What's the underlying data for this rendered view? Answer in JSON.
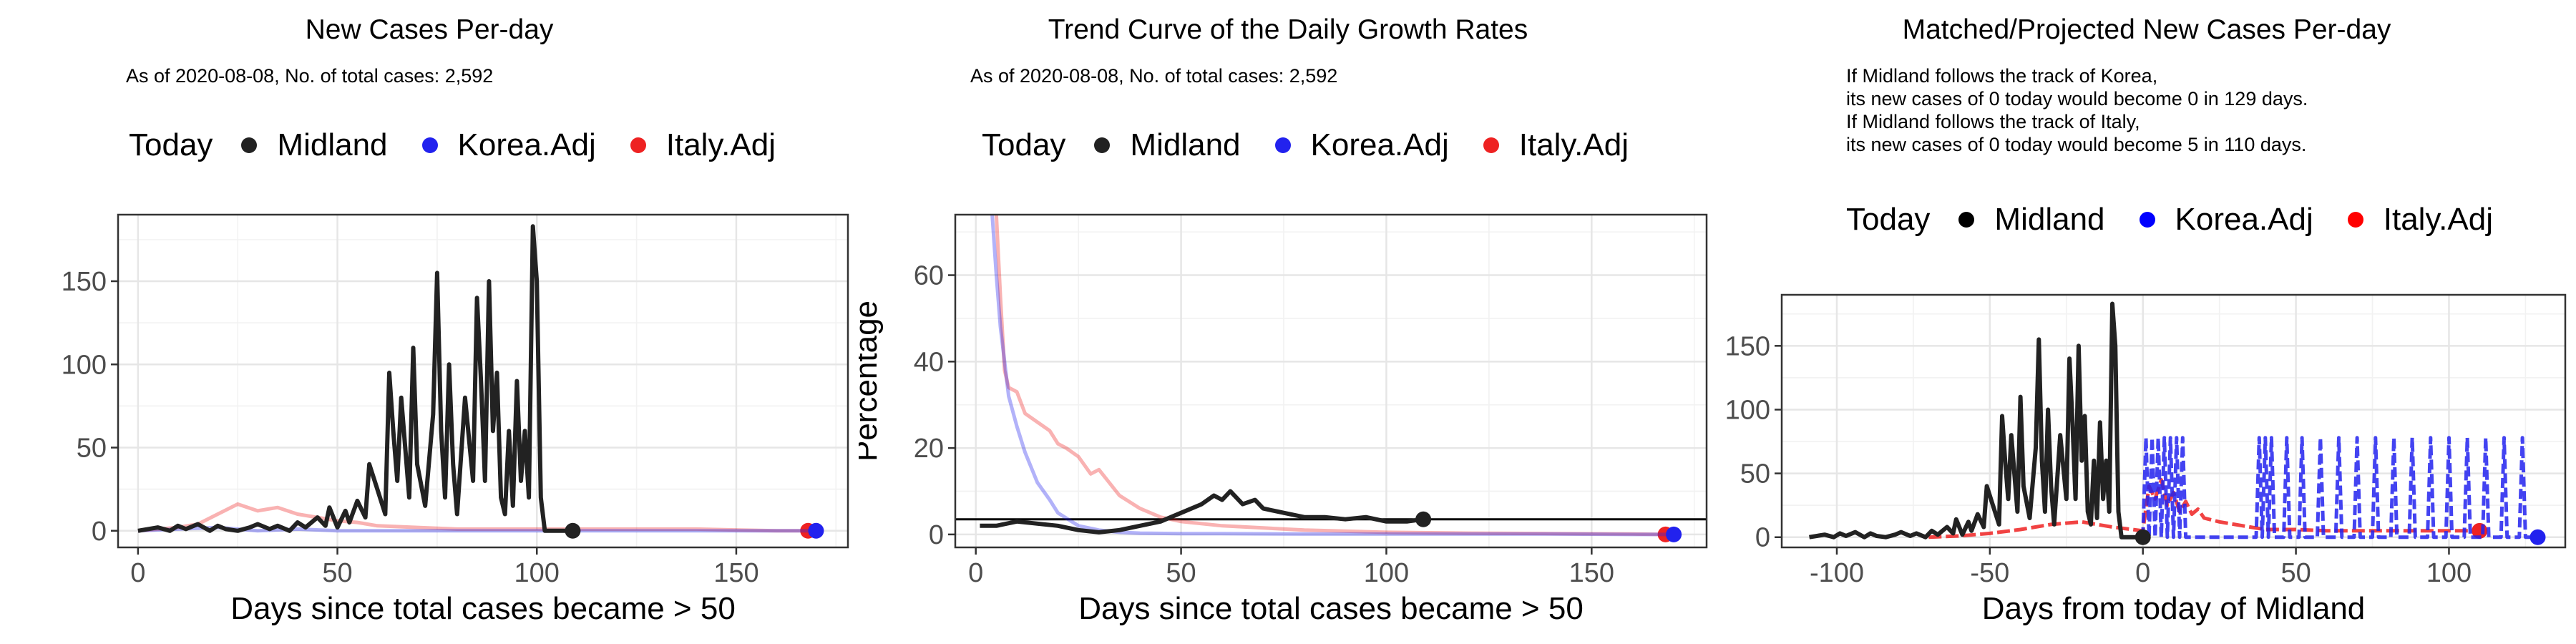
{
  "colors": {
    "midland": "#222222",
    "korea": "#2222ee",
    "italy": "#ee2222",
    "grid": "#ebebeb",
    "hline": "#000000"
  },
  "legend": {
    "title": "Today",
    "items": [
      "Midland",
      "Korea.Adj",
      "Italy.Adj"
    ]
  },
  "panel1": {
    "title": "New Cases Per-day",
    "subtitle": "As of 2020-08-08, No. of total cases: 2,592",
    "xlabel": "Days since total cases became > 50"
  },
  "panel2": {
    "title": "Trend Curve of the Daily Growth Rates",
    "subtitle": "As of 2020-08-08, No. of total cases: 2,592",
    "xlabel": "Days since total cases became > 50",
    "ylabel": "Percentage"
  },
  "panel3": {
    "title": "Matched/Projected New Cases Per-day",
    "note1": "If Midland follows the track of Korea,",
    "note2": "its new cases of 0 today would become 0 in 129 days.",
    "note3": "If Midland follows the track of Italy,",
    "note4": "its new cases of 0 today would become 5 in 110 days.",
    "xlabel": "Days from today of Midland"
  },
  "chart_data": [
    {
      "type": "line",
      "title": "New Cases Per-day",
      "xlabel": "Days since total cases became > 50",
      "ylabel": "",
      "xlim": [
        -5,
        178
      ],
      "ylim": [
        -10,
        190
      ],
      "xticks": [
        0,
        50,
        100,
        150
      ],
      "yticks": [
        0,
        50,
        100,
        150
      ],
      "series": [
        {
          "name": "Midland",
          "color": "#222222",
          "today": [
            109,
            0
          ],
          "x": [
            0,
            5,
            8,
            10,
            12,
            15,
            18,
            20,
            22,
            25,
            28,
            30,
            33,
            35,
            38,
            40,
            42,
            45,
            47,
            48,
            50,
            52,
            53,
            55,
            57,
            58,
            60,
            62,
            63,
            64,
            65,
            66,
            67,
            68,
            69,
            70,
            72,
            74,
            75,
            76,
            77,
            78,
            79,
            80,
            82,
            84,
            85,
            86,
            87,
            88,
            89,
            90,
            91,
            92,
            93,
            94,
            95,
            96,
            97,
            98,
            99,
            100,
            101,
            102,
            103,
            104,
            105,
            106,
            107,
            108,
            109
          ],
          "y": [
            0,
            2,
            0,
            3,
            1,
            4,
            0,
            3,
            1,
            0,
            2,
            4,
            1,
            3,
            0,
            5,
            2,
            8,
            3,
            14,
            2,
            12,
            5,
            18,
            8,
            40,
            25,
            10,
            95,
            60,
            30,
            80,
            50,
            20,
            110,
            40,
            15,
            70,
            155,
            60,
            20,
            100,
            40,
            10,
            80,
            30,
            140,
            90,
            30,
            150,
            60,
            95,
            20,
            10,
            60,
            15,
            90,
            30,
            60,
            20,
            183,
            150,
            20,
            0,
            0,
            0,
            0,
            0,
            0,
            0,
            0
          ]
        },
        {
          "name": "Korea.Adj",
          "color": "#2222ee",
          "today": [
            170,
            0
          ],
          "x": [
            0,
            10,
            20,
            30,
            40,
            50,
            60,
            80,
            100,
            120,
            140,
            160,
            170
          ],
          "y": [
            0,
            1,
            2,
            0,
            1,
            0,
            0,
            0,
            0,
            0,
            0,
            0,
            0
          ]
        },
        {
          "name": "Italy.Adj",
          "color": "#ee2222",
          "today": [
            168,
            0
          ],
          "x": [
            0,
            10,
            15,
            20,
            25,
            30,
            35,
            40,
            45,
            50,
            55,
            60,
            70,
            80,
            100,
            120,
            140,
            160,
            168
          ],
          "y": [
            0,
            2,
            4,
            10,
            16,
            12,
            14,
            10,
            8,
            6,
            5,
            3,
            2,
            1,
            1,
            1,
            1,
            0,
            0
          ]
        }
      ]
    },
    {
      "type": "line",
      "title": "Trend Curve of the Daily Growth Rates",
      "xlabel": "Days since total cases became > 50",
      "ylabel": "Percentage",
      "xlim": [
        -5,
        178
      ],
      "ylim": [
        -3,
        74
      ],
      "xticks": [
        0,
        50,
        100,
        150
      ],
      "yticks": [
        0,
        20,
        40,
        60
      ],
      "hline": 3.5,
      "series": [
        {
          "name": "Midland",
          "color": "#222222",
          "today": [
            109,
            3.5
          ],
          "x": [
            1,
            5,
            10,
            15,
            20,
            25,
            30,
            35,
            40,
            45,
            50,
            55,
            58,
            60,
            62,
            65,
            68,
            70,
            75,
            80,
            85,
            90,
            95,
            100,
            105,
            109
          ],
          "y": [
            2,
            2,
            3,
            2.5,
            2,
            1,
            0.5,
            1,
            2,
            3,
            5,
            7,
            9,
            8,
            10,
            7,
            8,
            6,
            5,
            4,
            4,
            3.5,
            4,
            3,
            3,
            3.5
          ]
        },
        {
          "name": "Korea.Adj",
          "color": "#2222ee",
          "today": [
            170,
            0
          ],
          "x": [
            4,
            5,
            6,
            7,
            8,
            10,
            12,
            15,
            18,
            20,
            25,
            30,
            35,
            40,
            50,
            60,
            80,
            100,
            120,
            140,
            160,
            170
          ],
          "y": [
            74,
            60,
            48,
            40,
            32,
            25,
            19,
            12,
            8,
            5,
            2,
            1,
            0.5,
            0.3,
            0.2,
            0.2,
            0.1,
            0.1,
            0.1,
            0.1,
            0,
            0
          ]
        },
        {
          "name": "Italy.Adj",
          "color": "#ee2222",
          "today": [
            168,
            0
          ],
          "x": [
            5,
            6,
            7,
            8,
            10,
            12,
            15,
            18,
            20,
            22,
            25,
            28,
            30,
            35,
            40,
            45,
            50,
            60,
            70,
            80,
            100,
            120,
            140,
            160,
            168
          ],
          "y": [
            74,
            55,
            38,
            34,
            33,
            28,
            26,
            24,
            21,
            20,
            18,
            14,
            15,
            9,
            6,
            4,
            3,
            2,
            1.5,
            1,
            0.5,
            0.3,
            0.2,
            0.1,
            0
          ]
        }
      ]
    },
    {
      "type": "line",
      "title": "Matched/Projected New Cases Per-day",
      "xlabel": "Days from today of Midland",
      "ylabel": "",
      "xlim": [
        -118,
        138
      ],
      "ylim": [
        -8,
        190
      ],
      "xticks": [
        -100,
        -50,
        0,
        50,
        100
      ],
      "yticks": [
        0,
        50,
        100,
        150
      ],
      "series": [
        {
          "name": "Midland",
          "color": "#222222",
          "today": [
            0,
            0
          ],
          "x": [
            -109,
            -104,
            -101,
            -99,
            -97,
            -94,
            -91,
            -89,
            -87,
            -84,
            -81,
            -79,
            -76,
            -74,
            -71,
            -69,
            -67,
            -64,
            -62,
            -61,
            -59,
            -57,
            -56,
            -54,
            -52,
            -51,
            -49,
            -47,
            -46,
            -45,
            -44,
            -43,
            -42,
            -41,
            -40,
            -39,
            -37,
            -35,
            -34,
            -33,
            -32,
            -31,
            -30,
            -29,
            -27,
            -25,
            -24,
            -23,
            -22,
            -21,
            -20,
            -19,
            -18,
            -17,
            -16,
            -15,
            -14,
            -13,
            -12,
            -11,
            -10,
            -9,
            -8,
            -7,
            -6,
            -5,
            -4,
            -3,
            -2,
            -1,
            0
          ],
          "y": [
            0,
            2,
            0,
            3,
            1,
            4,
            0,
            3,
            1,
            0,
            2,
            4,
            1,
            3,
            0,
            5,
            2,
            8,
            3,
            14,
            2,
            12,
            5,
            18,
            8,
            40,
            25,
            10,
            95,
            60,
            30,
            80,
            50,
            20,
            110,
            40,
            15,
            70,
            155,
            60,
            20,
            100,
            40,
            10,
            80,
            30,
            140,
            90,
            30,
            150,
            60,
            95,
            20,
            10,
            60,
            15,
            90,
            30,
            60,
            20,
            183,
            150,
            20,
            0,
            0,
            0,
            0,
            0,
            0,
            0,
            0
          ]
        },
        {
          "name": "Korea.Adj",
          "color": "#2222ee",
          "today": [
            129,
            0
          ],
          "x": [
            0,
            1,
            2,
            3,
            4,
            5,
            6,
            7,
            8,
            9,
            10,
            11,
            12,
            13,
            14,
            15,
            16,
            17,
            18,
            19,
            20,
            21,
            22,
            23,
            24,
            25,
            26,
            27,
            28,
            29,
            30,
            31,
            32,
            33,
            34,
            35,
            36,
            37,
            38,
            39,
            40,
            41,
            42,
            43,
            44,
            45,
            46,
            47,
            48,
            49,
            50,
            51,
            52,
            53,
            54,
            55,
            56,
            57,
            58,
            59,
            60,
            61,
            62,
            63,
            64,
            65,
            66,
            67,
            68,
            69,
            70,
            71,
            72,
            73,
            74,
            75,
            76,
            77,
            78,
            79,
            80,
            81,
            82,
            83,
            84,
            85,
            86,
            87,
            88,
            89,
            90,
            91,
            92,
            93,
            94,
            95,
            96,
            97,
            98,
            99,
            100,
            101,
            102,
            103,
            104,
            105,
            106,
            107,
            108,
            109,
            110,
            111,
            112,
            113,
            114,
            115,
            116,
            117,
            118,
            119,
            120,
            121,
            122,
            123,
            124,
            125,
            126,
            127,
            128,
            129
          ],
          "y": [
            0,
            78,
            0,
            78,
            0,
            78,
            0,
            78,
            0,
            78,
            0,
            78,
            0,
            78,
            0,
            0,
            0,
            0,
            0,
            0,
            0,
            0,
            0,
            0,
            0,
            0,
            0,
            0,
            0,
            0,
            0,
            0,
            0,
            0,
            0,
            0,
            0,
            0,
            78,
            0,
            78,
            0,
            78,
            0,
            0,
            0,
            0,
            78,
            0,
            0,
            0,
            0,
            78,
            0,
            0,
            0,
            0,
            0,
            78,
            0,
            0,
            0,
            0,
            0,
            78,
            0,
            0,
            0,
            0,
            0,
            78,
            0,
            0,
            0,
            0,
            0,
            78,
            0,
            0,
            0,
            0,
            0,
            78,
            0,
            0,
            0,
            0,
            0,
            78,
            0,
            0,
            0,
            0,
            0,
            78,
            0,
            0,
            0,
            0,
            0,
            78,
            0,
            0,
            0,
            0,
            0,
            78,
            0,
            0,
            0,
            0,
            0,
            78,
            0,
            0,
            0,
            0,
            0,
            78,
            0,
            0,
            0,
            0,
            0,
            78,
            0,
            0,
            0,
            0,
            0
          ]
        },
        {
          "name": "Italy.Adj",
          "color": "#ee2222",
          "today": [
            110,
            5
          ],
          "x": [
            -70,
            -60,
            -50,
            -40,
            -30,
            -20,
            -10,
            0,
            2,
            4,
            6,
            8,
            10,
            12,
            14,
            16,
            18,
            20,
            25,
            30,
            35,
            40,
            50,
            60,
            70,
            80,
            90,
            100,
            110
          ],
          "y": [
            0,
            1,
            3,
            6,
            10,
            12,
            8,
            5,
            40,
            30,
            45,
            25,
            35,
            20,
            28,
            18,
            22,
            15,
            12,
            10,
            8,
            6,
            6,
            5,
            5,
            5,
            5,
            5,
            5
          ]
        }
      ]
    }
  ]
}
